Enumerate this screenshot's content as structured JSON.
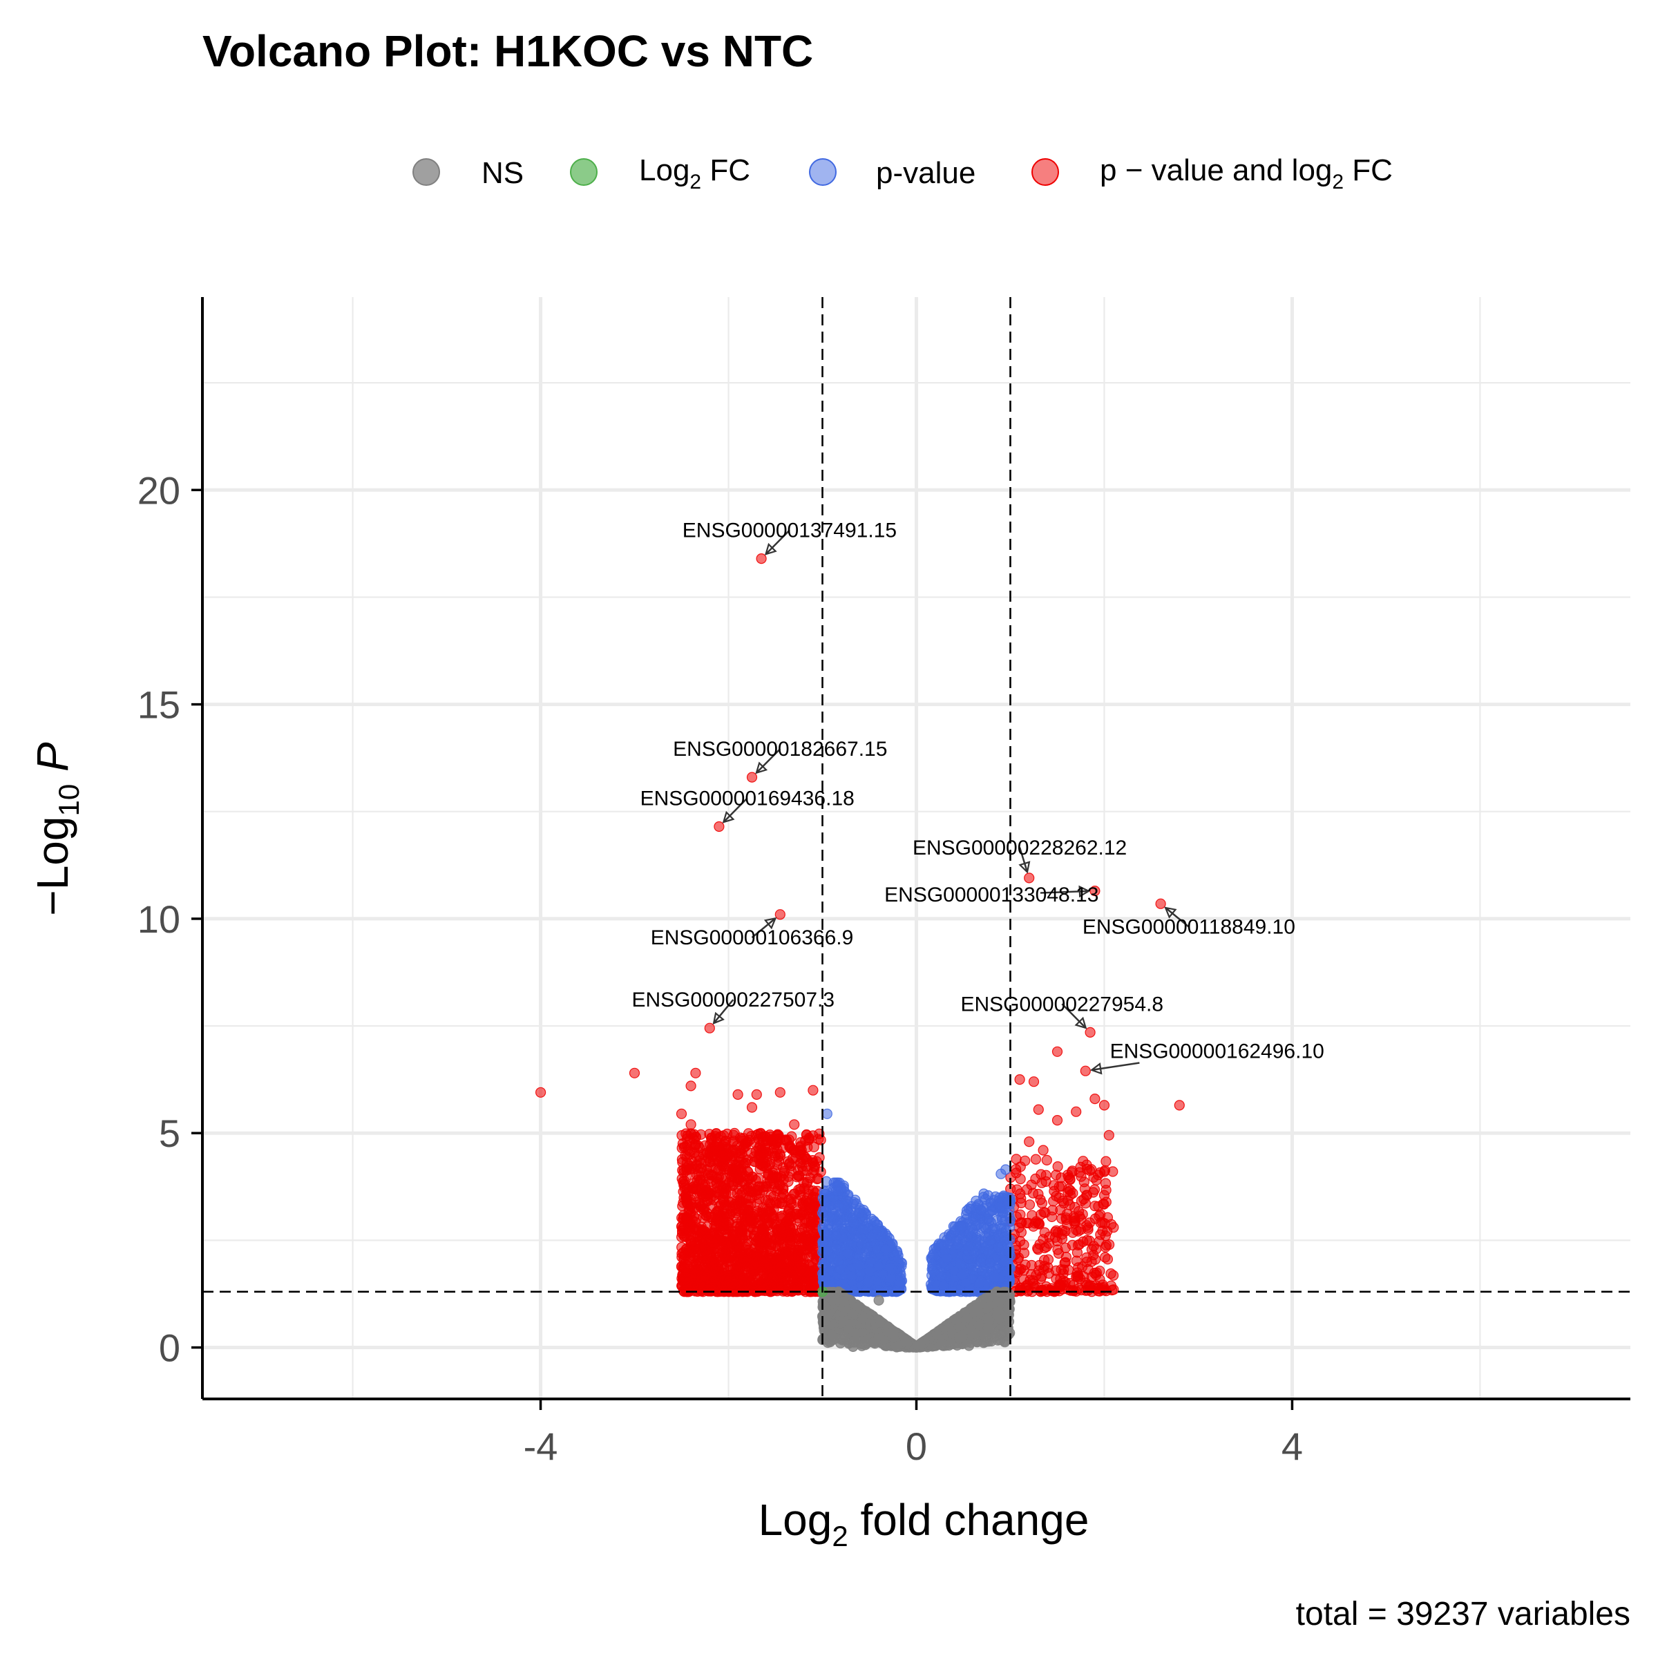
{
  "chart_data": {
    "type": "scatter",
    "title": "Volcano Plot: H1KOC vs NTC",
    "xlabel": {
      "prefix": "Log",
      "sub": "2",
      "suffix": " fold change"
    },
    "ylabel": {
      "prefix": "−Log",
      "sub": "10",
      "suffix": " P"
    },
    "caption": "total = 39237 variables",
    "xlim": [
      -7.6,
      7.6
    ],
    "ylim": [
      -1.2,
      24.5
    ],
    "x_ticks": [
      -4,
      0,
      4
    ],
    "x_tick_labels": [
      "-4",
      "0",
      "4"
    ],
    "y_ticks": [
      0,
      5,
      10,
      15,
      20
    ],
    "y_tick_labels": [
      "0",
      "5",
      "10",
      "15",
      "20"
    ],
    "grid": true,
    "legend_position": "top",
    "legend": [
      {
        "key": "ns",
        "text": "NS",
        "sub": "",
        "suffix": "",
        "color": "#808080"
      },
      {
        "key": "fc",
        "text": "Log",
        "sub": "2",
        "suffix": " FC",
        "color": "#4daf4a"
      },
      {
        "key": "p",
        "text": "p-value",
        "sub": "",
        "suffix": "",
        "color": "#4169e1"
      },
      {
        "key": "both",
        "text": "p − value and log",
        "sub": "2",
        "suffix": " FC",
        "color": "#ee0000"
      }
    ],
    "cutoffs": {
      "fc": [
        -1,
        1
      ],
      "p": 1.3
    },
    "labeled_points": [
      {
        "label": "ENSG00000137491.15",
        "x": -1.65,
        "y": 18.4,
        "lx": -1.35,
        "ly": 18.9
      },
      {
        "label": "ENSG00000182667.15",
        "x": -1.75,
        "y": 13.3,
        "lx": -1.45,
        "ly": 13.8
      },
      {
        "label": "ENSG00000169436.18",
        "x": -2.1,
        "y": 12.15,
        "lx": -1.8,
        "ly": 12.65
      },
      {
        "label": "ENSG00000228262.12",
        "x": 1.2,
        "y": 10.95,
        "lx": 1.1,
        "ly": 11.5
      },
      {
        "label": "ENSG00000133048.13",
        "x": 1.9,
        "y": 10.65,
        "lx": 0.8,
        "ly": 10.4
      },
      {
        "label": "ENSG00000118849.10",
        "x": 2.6,
        "y": 10.35,
        "lx": 2.9,
        "ly": 9.65
      },
      {
        "label": "ENSG00000106366.9",
        "x": -1.45,
        "y": 10.1,
        "lx": -1.75,
        "ly": 9.4
      },
      {
        "label": "ENSG00000227507.3",
        "x": -2.2,
        "y": 7.45,
        "lx": -1.95,
        "ly": 7.95
      },
      {
        "label": "ENSG00000227954.8",
        "x": 1.85,
        "y": 7.35,
        "lx": 1.55,
        "ly": 7.85
      },
      {
        "label": "ENSG00000162496.10",
        "x": 1.8,
        "y": 6.45,
        "lx": 3.2,
        "ly": 6.75
      }
    ],
    "points": [
      {
        "x": -4.0,
        "y": 5.95,
        "c": "both"
      },
      {
        "x": -3.0,
        "y": 6.4,
        "c": "both"
      },
      {
        "x": -2.35,
        "y": 6.4,
        "c": "both"
      },
      {
        "x": -2.4,
        "y": 6.1,
        "c": "both"
      },
      {
        "x": -2.5,
        "y": 5.45,
        "c": "both"
      },
      {
        "x": -2.4,
        "y": 5.2,
        "c": "both"
      },
      {
        "x": -1.9,
        "y": 5.9,
        "c": "both"
      },
      {
        "x": -1.7,
        "y": 5.9,
        "c": "both"
      },
      {
        "x": -1.45,
        "y": 5.95,
        "c": "both"
      },
      {
        "x": -1.1,
        "y": 6.0,
        "c": "both"
      },
      {
        "x": -1.3,
        "y": 5.2,
        "c": "both"
      },
      {
        "x": -1.75,
        "y": 5.6,
        "c": "both"
      },
      {
        "x": -2.15,
        "y": 4.6,
        "c": "both"
      },
      {
        "x": -2.3,
        "y": 3.9,
        "c": "both"
      },
      {
        "x": -2.3,
        "y": 2.6,
        "c": "both"
      },
      {
        "x": -2.3,
        "y": 2.3,
        "c": "both"
      },
      {
        "x": -1.3,
        "y": 4.6,
        "c": "both"
      },
      {
        "x": -1.35,
        "y": 4.3,
        "c": "both"
      },
      {
        "x": -0.95,
        "y": 5.45,
        "c": "p"
      },
      {
        "x": -1.0,
        "y": 1.3,
        "c": "fc"
      },
      {
        "x": 1.1,
        "y": 6.25,
        "c": "both"
      },
      {
        "x": 1.25,
        "y": 6.2,
        "c": "both"
      },
      {
        "x": 1.5,
        "y": 6.9,
        "c": "both"
      },
      {
        "x": 1.3,
        "y": 5.55,
        "c": "both"
      },
      {
        "x": 1.5,
        "y": 5.3,
        "c": "both"
      },
      {
        "x": 1.7,
        "y": 5.5,
        "c": "both"
      },
      {
        "x": 1.9,
        "y": 5.8,
        "c": "both"
      },
      {
        "x": 2.0,
        "y": 5.65,
        "c": "both"
      },
      {
        "x": 2.05,
        "y": 4.95,
        "c": "both"
      },
      {
        "x": 2.8,
        "y": 5.65,
        "c": "both"
      },
      {
        "x": 2.0,
        "y": 4.1,
        "c": "both"
      },
      {
        "x": 2.0,
        "y": 3.55,
        "c": "both"
      },
      {
        "x": 1.9,
        "y": 3.3,
        "c": "both"
      },
      {
        "x": 1.75,
        "y": 2.75,
        "c": "both"
      },
      {
        "x": 1.2,
        "y": 4.8,
        "c": "both"
      },
      {
        "x": 1.35,
        "y": 4.6,
        "c": "both"
      },
      {
        "x": 0.95,
        "y": 4.15,
        "c": "p"
      },
      {
        "x": 0.9,
        "y": 4.05,
        "c": "p"
      },
      {
        "x": -0.4,
        "y": 1.1,
        "c": "ns"
      }
    ],
    "clusters": [
      {
        "c": "both",
        "n": 1700,
        "x": [
          -2.5,
          -1.0
        ],
        "ymin": 1.3,
        "ymax": 5.0,
        "seed": 11
      },
      {
        "c": "both",
        "n": 320,
        "x": [
          1.0,
          2.1
        ],
        "ymin": 1.3,
        "ymax": 4.4,
        "seed": 23
      },
      {
        "c": "p",
        "n": 900,
        "x": [
          -1.0,
          -0.15
        ],
        "ymin": 1.3,
        "ymax": 3.9,
        "seed": 37
      },
      {
        "c": "p",
        "n": 700,
        "x": [
          0.15,
          1.0
        ],
        "ymin": 1.3,
        "ymax": 3.6,
        "seed": 41
      },
      {
        "c": "ns",
        "n": 2600,
        "x": [
          -1.0,
          1.0
        ],
        "ymin": 0.0,
        "ymax": 1.3,
        "seed": 53
      }
    ]
  }
}
